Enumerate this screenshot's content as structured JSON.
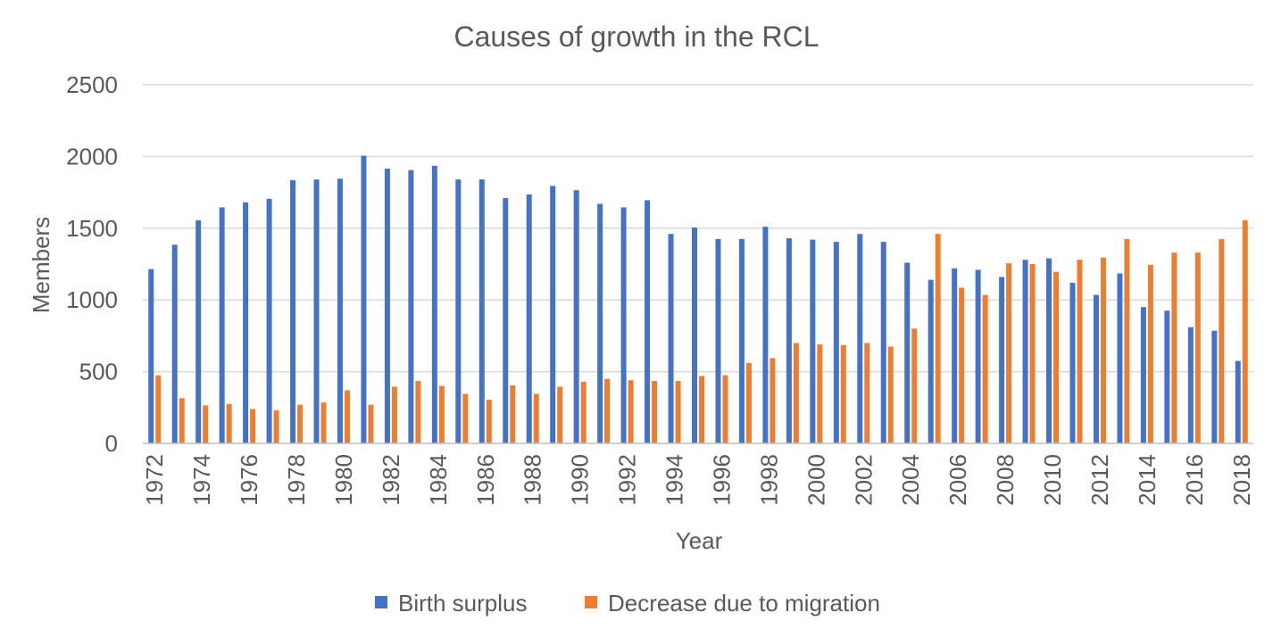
{
  "chart_data": {
    "type": "bar",
    "title": "Causes of growth in the RCL",
    "xlabel": "Year",
    "ylabel": "Members",
    "ylim": [
      0,
      2500
    ],
    "yticks": [
      0,
      500,
      1000,
      1500,
      2000,
      2500
    ],
    "grid": "horizontal",
    "legend": "bottom",
    "categories": [
      "1972",
      "1973",
      "1974",
      "1975",
      "1976",
      "1977",
      "1978",
      "1979",
      "1980",
      "1981",
      "1982",
      "1983",
      "1984",
      "1985",
      "1986",
      "1987",
      "1988",
      "1989",
      "1990",
      "1991",
      "1992",
      "1993",
      "1994",
      "1995",
      "1996",
      "1997",
      "1998",
      "1999",
      "2000",
      "2001",
      "2002",
      "2003",
      "2004",
      "2005",
      "2006",
      "2007",
      "2008",
      "2009",
      "2010",
      "2011",
      "2012",
      "2013",
      "2014",
      "2015",
      "2016",
      "2017",
      "2018"
    ],
    "xtick_labels": [
      "1972",
      "1974",
      "1976",
      "1978",
      "1980",
      "1982",
      "1984",
      "1986",
      "1988",
      "1990",
      "1992",
      "1994",
      "1996",
      "1998",
      "2000",
      "2002",
      "2004",
      "2006",
      "2008",
      "2010",
      "2012",
      "2014",
      "2016",
      "2018"
    ],
    "series": [
      {
        "name": "Birth surplus",
        "color": "#4472C4",
        "values": [
          1215,
          1385,
          1555,
          1645,
          1680,
          1705,
          1835,
          1840,
          1845,
          2005,
          1915,
          1905,
          1935,
          1840,
          1840,
          1710,
          1735,
          1795,
          1765,
          1670,
          1645,
          1695,
          1460,
          1505,
          1425,
          1425,
          1510,
          1430,
          1420,
          1405,
          1460,
          1405,
          1260,
          1140,
          1220,
          1210,
          1160,
          1280,
          1290,
          1120,
          1035,
          1185,
          950,
          925,
          810,
          785,
          575
        ]
      },
      {
        "name": "Decrease due to migration",
        "color": "#ED7D31",
        "values": [
          475,
          315,
          265,
          275,
          240,
          230,
          270,
          285,
          370,
          270,
          395,
          435,
          400,
          345,
          305,
          405,
          345,
          395,
          430,
          450,
          440,
          435,
          435,
          470,
          475,
          560,
          595,
          700,
          690,
          685,
          700,
          675,
          800,
          1460,
          1085,
          1035,
          1255,
          1250,
          1195,
          1280,
          1295,
          1425,
          1245,
          1330,
          1330,
          1425,
          1555
        ]
      }
    ]
  }
}
